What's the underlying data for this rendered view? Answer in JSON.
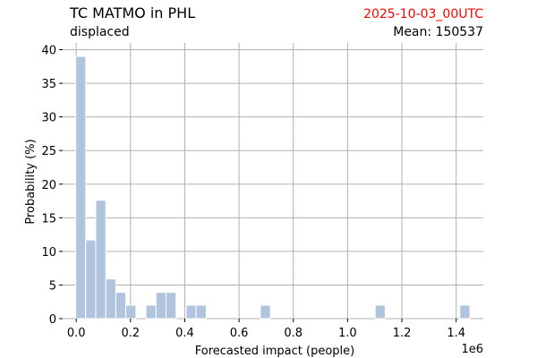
{
  "chart_data": {
    "type": "bar",
    "title": "TC MATMO in PHL",
    "subtitle": "displaced",
    "date_label": "2025-10-03_00UTC",
    "date_color": "#ff0000",
    "mean_label": "Mean: 150537",
    "xlabel": "Forecasted impact (people)",
    "ylabel": "Probability (%)",
    "x_multiplier_label": "1e6",
    "xlim": [
      -50000,
      1500000
    ],
    "ylim": [
      0,
      41
    ],
    "grid": true,
    "bar_color": "#b0c4de",
    "bin_width": 37000,
    "x_ticks": [
      0,
      200000,
      400000,
      600000,
      800000,
      1000000,
      1200000,
      1400000
    ],
    "x_tick_labels": [
      "0.0",
      "0.2",
      "0.4",
      "0.6",
      "0.8",
      "1.0",
      "1.2",
      "1.4"
    ],
    "y_ticks": [
      0,
      5,
      10,
      15,
      20,
      25,
      30,
      35,
      40
    ],
    "y_tick_labels": [
      "0",
      "5",
      "10",
      "15",
      "20",
      "25",
      "30",
      "35",
      "40"
    ],
    "bins": [
      {
        "x": 16500,
        "y": 39
      },
      {
        "x": 53500,
        "y": 11.7
      },
      {
        "x": 90500,
        "y": 17.6
      },
      {
        "x": 127500,
        "y": 5.9
      },
      {
        "x": 164500,
        "y": 3.9
      },
      {
        "x": 201500,
        "y": 2
      },
      {
        "x": 275500,
        "y": 2
      },
      {
        "x": 312500,
        "y": 3.9
      },
      {
        "x": 349500,
        "y": 3.9
      },
      {
        "x": 423500,
        "y": 2
      },
      {
        "x": 460500,
        "y": 2
      },
      {
        "x": 697000,
        "y": 2
      },
      {
        "x": 1120000,
        "y": 2
      },
      {
        "x": 1432000,
        "y": 2
      }
    ]
  }
}
